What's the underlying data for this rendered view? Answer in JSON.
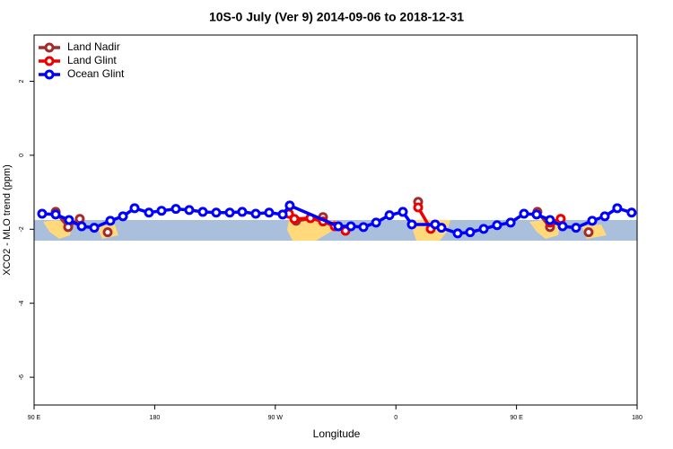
{
  "chart_data": {
    "type": "line",
    "title": "10S-0 July (Ver 9)   2014-09-06 to 2018-12-31",
    "xlabel": "Longitude",
    "ylabel": "XCO2 - MLO trend (ppm)",
    "xlim": [
      90,
      540
    ],
    "ylim": [
      -6.75,
      3.25
    ],
    "xticks": [
      {
        "value": 90,
        "label": "90 E"
      },
      180,
      {
        "value": 270,
        "label": "90 W"
      },
      {
        "value": 360,
        "label": "0"
      },
      {
        "value": 450,
        "label": "90 E"
      },
      {
        "value": 540,
        "label": "180"
      }
    ],
    "yticks": [
      -6,
      -4,
      -2,
      0,
      2
    ],
    "legend": "upper left",
    "series": [
      {
        "name": "Land Nadir",
        "color": "#a52a2a",
        "x": [
          106.1,
          115.4,
          124.1,
          null,
          144.9,
          null,
          285.5,
          305.6,
          null,
          376.6,
          null,
          465.6,
          475.0,
          483.0,
          null,
          503.8
        ],
        "values": [
          -1.53,
          -1.94,
          -1.72,
          null,
          -2.08,
          null,
          -1.77,
          -1.67,
          null,
          -1.26,
          null,
          -1.53,
          -1.94,
          -1.72,
          null,
          -2.08
        ]
      },
      {
        "name": "Land Glint",
        "color": "#ee0000",
        "x": [
          280.2,
          284.2,
          296.2,
          305.6,
          314.3,
          322.4,
          null,
          376.6,
          386.0,
          null,
          475.0,
          483.0
        ],
        "values": [
          -1.58,
          -1.72,
          -1.7,
          -1.79,
          -1.92,
          -2.04,
          null,
          -1.41,
          -1.99,
          null,
          -1.82,
          -1.72
        ]
      },
      {
        "name": "Ocean Glint",
        "color": "#0000ff",
        "x": [
          96.0,
          106.1,
          116.1,
          125.5,
          134.9,
          146.9,
          156.3,
          165.0,
          175.7,
          185.1,
          195.8,
          205.8,
          215.9,
          225.9,
          236.0,
          245.3,
          255.4,
          265.4,
          275.5,
          280.8,
          317.0,
          326.4,
          335.8,
          345.2,
          355.2,
          365.2,
          371.9,
          389.3,
          394.0,
          406.1,
          415.4,
          425.5,
          435.5,
          445.6,
          455.6,
          465.0,
          475.0,
          484.4,
          494.4,
          506.5,
          515.9,
          525.2,
          535.9
        ],
        "values": [
          -1.58,
          -1.6,
          -1.75,
          -1.92,
          -1.96,
          -1.77,
          -1.65,
          -1.43,
          -1.55,
          -1.5,
          -1.45,
          -1.48,
          -1.53,
          -1.55,
          -1.55,
          -1.53,
          -1.58,
          -1.55,
          -1.6,
          -1.36,
          -1.92,
          -1.92,
          -1.94,
          -1.82,
          -1.62,
          -1.53,
          -1.87,
          -1.87,
          -1.96,
          -2.11,
          -2.08,
          -1.99,
          -1.89,
          -1.82,
          -1.58,
          -1.6,
          -1.75,
          -1.92,
          -1.96,
          -1.77,
          -1.65,
          -1.43,
          -1.55
        ]
      }
    ]
  }
}
